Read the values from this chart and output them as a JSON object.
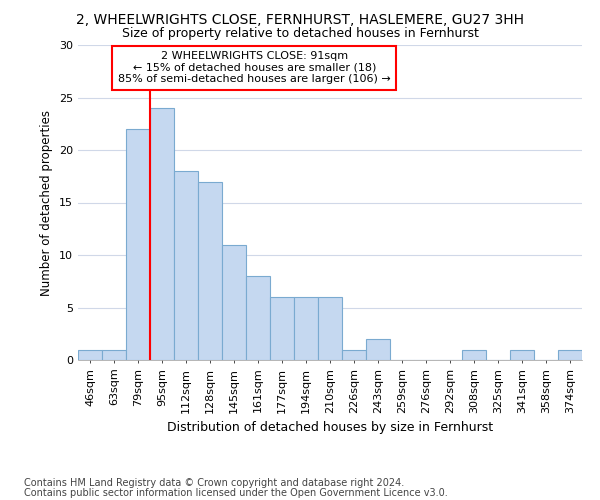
{
  "title1": "2, WHEELWRIGHTS CLOSE, FERNHURST, HASLEMERE, GU27 3HH",
  "title2": "Size of property relative to detached houses in Fernhurst",
  "xlabel_bottom": "Distribution of detached houses by size in Fernhurst",
  "ylabel": "Number of detached properties",
  "categories": [
    "46sqm",
    "63sqm",
    "79sqm",
    "95sqm",
    "112sqm",
    "128sqm",
    "145sqm",
    "161sqm",
    "177sqm",
    "194sqm",
    "210sqm",
    "226sqm",
    "243sqm",
    "259sqm",
    "276sqm",
    "292sqm",
    "308sqm",
    "325sqm",
    "341sqm",
    "358sqm",
    "374sqm"
  ],
  "values": [
    1,
    1,
    22,
    24,
    18,
    17,
    11,
    8,
    6,
    6,
    6,
    1,
    2,
    0,
    0,
    0,
    1,
    0,
    1,
    0,
    1
  ],
  "bar_color": "#c5d8f0",
  "bar_edge_color": "#7aaad0",
  "annotation_text": "2 WHEELWRIGHTS CLOSE: 91sqm\n← 15% of detached houses are smaller (18)\n85% of semi-detached houses are larger (106) →",
  "annotation_box_color": "white",
  "annotation_box_edge_color": "red",
  "vline_color": "red",
  "vline_x_index": 3,
  "ylim": [
    0,
    30
  ],
  "yticks": [
    0,
    5,
    10,
    15,
    20,
    25,
    30
  ],
  "footer1": "Contains HM Land Registry data © Crown copyright and database right 2024.",
  "footer2": "Contains public sector information licensed under the Open Government Licence v3.0.",
  "background_color": "#ffffff",
  "grid_color": "#d0d8e8",
  "title1_fontsize": 10,
  "title2_fontsize": 9,
  "axis_fontsize": 8,
  "ylabel_fontsize": 8.5,
  "footer_fontsize": 7
}
